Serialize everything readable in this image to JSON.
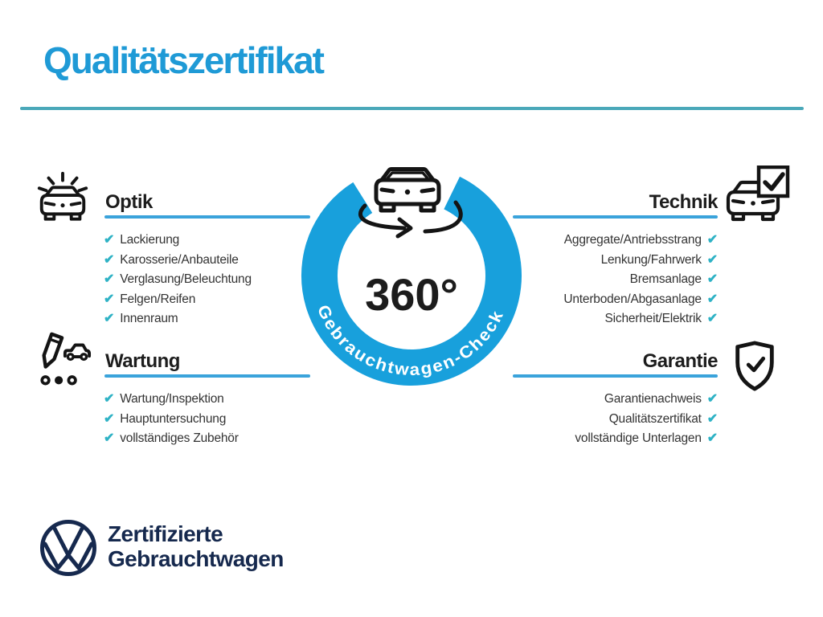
{
  "title": "Qualitätszertifikat",
  "badge": {
    "degree_label": "360°",
    "ring_label": "Gebrauchtwagen-Check"
  },
  "sections": {
    "optik": {
      "title": "Optik",
      "items": [
        "Lackierung",
        "Karosserie/Anbauteile",
        "Verglasung/Beleuchtung",
        "Felgen/Reifen",
        "Innenraum"
      ]
    },
    "wartung": {
      "title": "Wartung",
      "items": [
        "Wartung/Inspektion",
        "Hauptuntersuchung",
        "vollständiges Zubehör"
      ]
    },
    "technik": {
      "title": "Technik",
      "items": [
        "Aggregate/Antriebsstrang",
        "Lenkung/Fahrwerk",
        "Bremsanlage",
        "Unterboden/Abgasanlage",
        "Sicherheit/Elektrik"
      ]
    },
    "garantie": {
      "title": "Garantie",
      "items": [
        "Garantienachweis",
        "Qualitätszertifikat",
        "vollständige Unterlagen"
      ]
    }
  },
  "footer": {
    "line1": "Zertifizierte",
    "line2": "Gebrauchtwagen"
  },
  "icons": {
    "check_glyph": "✔",
    "optik": "car-sparkle-icon",
    "wartung": "pencil-car-checklist-icon",
    "technik": "car-checkbox-icon",
    "garantie": "shield-check-icon",
    "badge_center": "car-rotation-icon",
    "logo": "vw-logo"
  },
  "colors": {
    "title_blue": "#1f9ad6",
    "ring_blue": "#18a0dc",
    "rule_teal": "#4aa8b9",
    "underline_blue": "#3aa3db",
    "check_teal": "#2eb2c5",
    "vw_navy": "#16294e"
  }
}
